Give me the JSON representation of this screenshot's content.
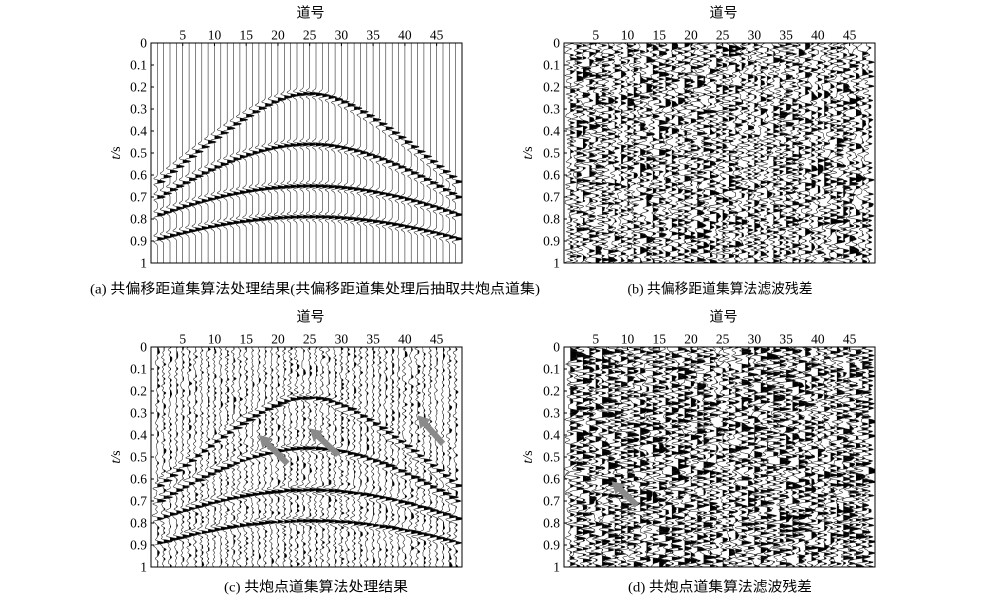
{
  "chart_data": [
    {
      "type": "line",
      "caption": "(a) 共偏移距道集算法处理结果(共偏移距道集处理后抽取共炮点道集)",
      "xlabel": "道号",
      "ylabel": "t/s",
      "x_axis_on_top": true,
      "y_inverted": true,
      "grid": false,
      "xlim": [
        0,
        49
      ],
      "ylim": [
        0,
        1
      ],
      "xticks": [
        5,
        10,
        15,
        20,
        25,
        30,
        35,
        40,
        45
      ],
      "yticks": [
        0,
        0.1,
        0.2,
        0.3,
        0.4,
        0.5,
        0.6,
        0.7,
        0.8,
        0.9,
        1
      ],
      "traces": [
        1,
        48
      ],
      "noise_level": 0,
      "events": [
        {
          "apex": [
            24.5,
            0.23
          ],
          "edge": [
            1,
            0.63
          ]
        },
        {
          "apex": [
            24.5,
            0.46
          ],
          "edge": [
            1,
            0.7
          ]
        },
        {
          "apex": [
            24.5,
            0.65
          ],
          "edge": [
            1,
            0.78
          ]
        },
        {
          "apex": [
            24.5,
            0.79
          ],
          "edge": [
            1,
            0.89
          ]
        }
      ],
      "arrows": [],
      "arrow_color": "#8a8a8a"
    },
    {
      "type": "line",
      "caption": "(b) 共偏移距道集算法滤波残差",
      "xlabel": "道号",
      "ylabel": "t/s",
      "x_axis_on_top": true,
      "y_inverted": true,
      "grid": false,
      "xlim": [
        0,
        49
      ],
      "ylim": [
        0,
        1
      ],
      "xticks": [
        5,
        10,
        15,
        20,
        25,
        30,
        35,
        40,
        45
      ],
      "yticks": [
        0,
        0.1,
        0.2,
        0.3,
        0.4,
        0.5,
        0.6,
        0.7,
        0.8,
        0.9,
        1
      ],
      "traces": [
        1,
        48
      ],
      "noise_level": 1.0,
      "events": [],
      "arrows": [],
      "arrow_color": "#8a8a8a"
    },
    {
      "type": "line",
      "caption": "(c) 共炮点道集算法处理结果",
      "xlabel": "道号",
      "ylabel": "t/s",
      "x_axis_on_top": true,
      "y_inverted": true,
      "grid": false,
      "xlim": [
        0,
        49
      ],
      "ylim": [
        0,
        1
      ],
      "xticks": [
        5,
        10,
        15,
        20,
        25,
        30,
        35,
        40,
        45
      ],
      "yticks": [
        0,
        0.1,
        0.2,
        0.3,
        0.4,
        0.5,
        0.6,
        0.7,
        0.8,
        0.9,
        1
      ],
      "traces": [
        1,
        48
      ],
      "noise_level": 0.3,
      "events": [
        {
          "apex": [
            24.5,
            0.23
          ],
          "edge": [
            1,
            0.63
          ]
        },
        {
          "apex": [
            24.5,
            0.46
          ],
          "edge": [
            1,
            0.7
          ]
        },
        {
          "apex": [
            24.5,
            0.65
          ],
          "edge": [
            1,
            0.78
          ]
        },
        {
          "apex": [
            24.5,
            0.79
          ],
          "edge": [
            1,
            0.89
          ]
        }
      ],
      "arrows": [
        {
          "from": [
            21.5,
            0.53
          ],
          "to": [
            17,
            0.4
          ]
        },
        {
          "from": [
            29.5,
            0.49
          ],
          "to": [
            25,
            0.37
          ]
        },
        {
          "from": [
            46,
            0.44
          ],
          "to": [
            42,
            0.31
          ]
        }
      ],
      "arrow_color": "#8a8a8a"
    },
    {
      "type": "line",
      "caption": "(d) 共炮点道集算法滤波残差",
      "xlabel": "道号",
      "ylabel": "t/s",
      "x_axis_on_top": true,
      "y_inverted": true,
      "grid": false,
      "xlim": [
        0,
        49
      ],
      "ylim": [
        0,
        1
      ],
      "xticks": [
        5,
        10,
        15,
        20,
        25,
        30,
        35,
        40,
        45
      ],
      "yticks": [
        0,
        0.1,
        0.2,
        0.3,
        0.4,
        0.5,
        0.6,
        0.7,
        0.8,
        0.9,
        1
      ],
      "traces": [
        1,
        48
      ],
      "noise_level": 1.2,
      "events": [],
      "arrows": [
        {
          "from": [
            11.5,
            0.72
          ],
          "to": [
            7.5,
            0.61
          ]
        }
      ],
      "arrow_color": "#8a8a8a"
    }
  ]
}
